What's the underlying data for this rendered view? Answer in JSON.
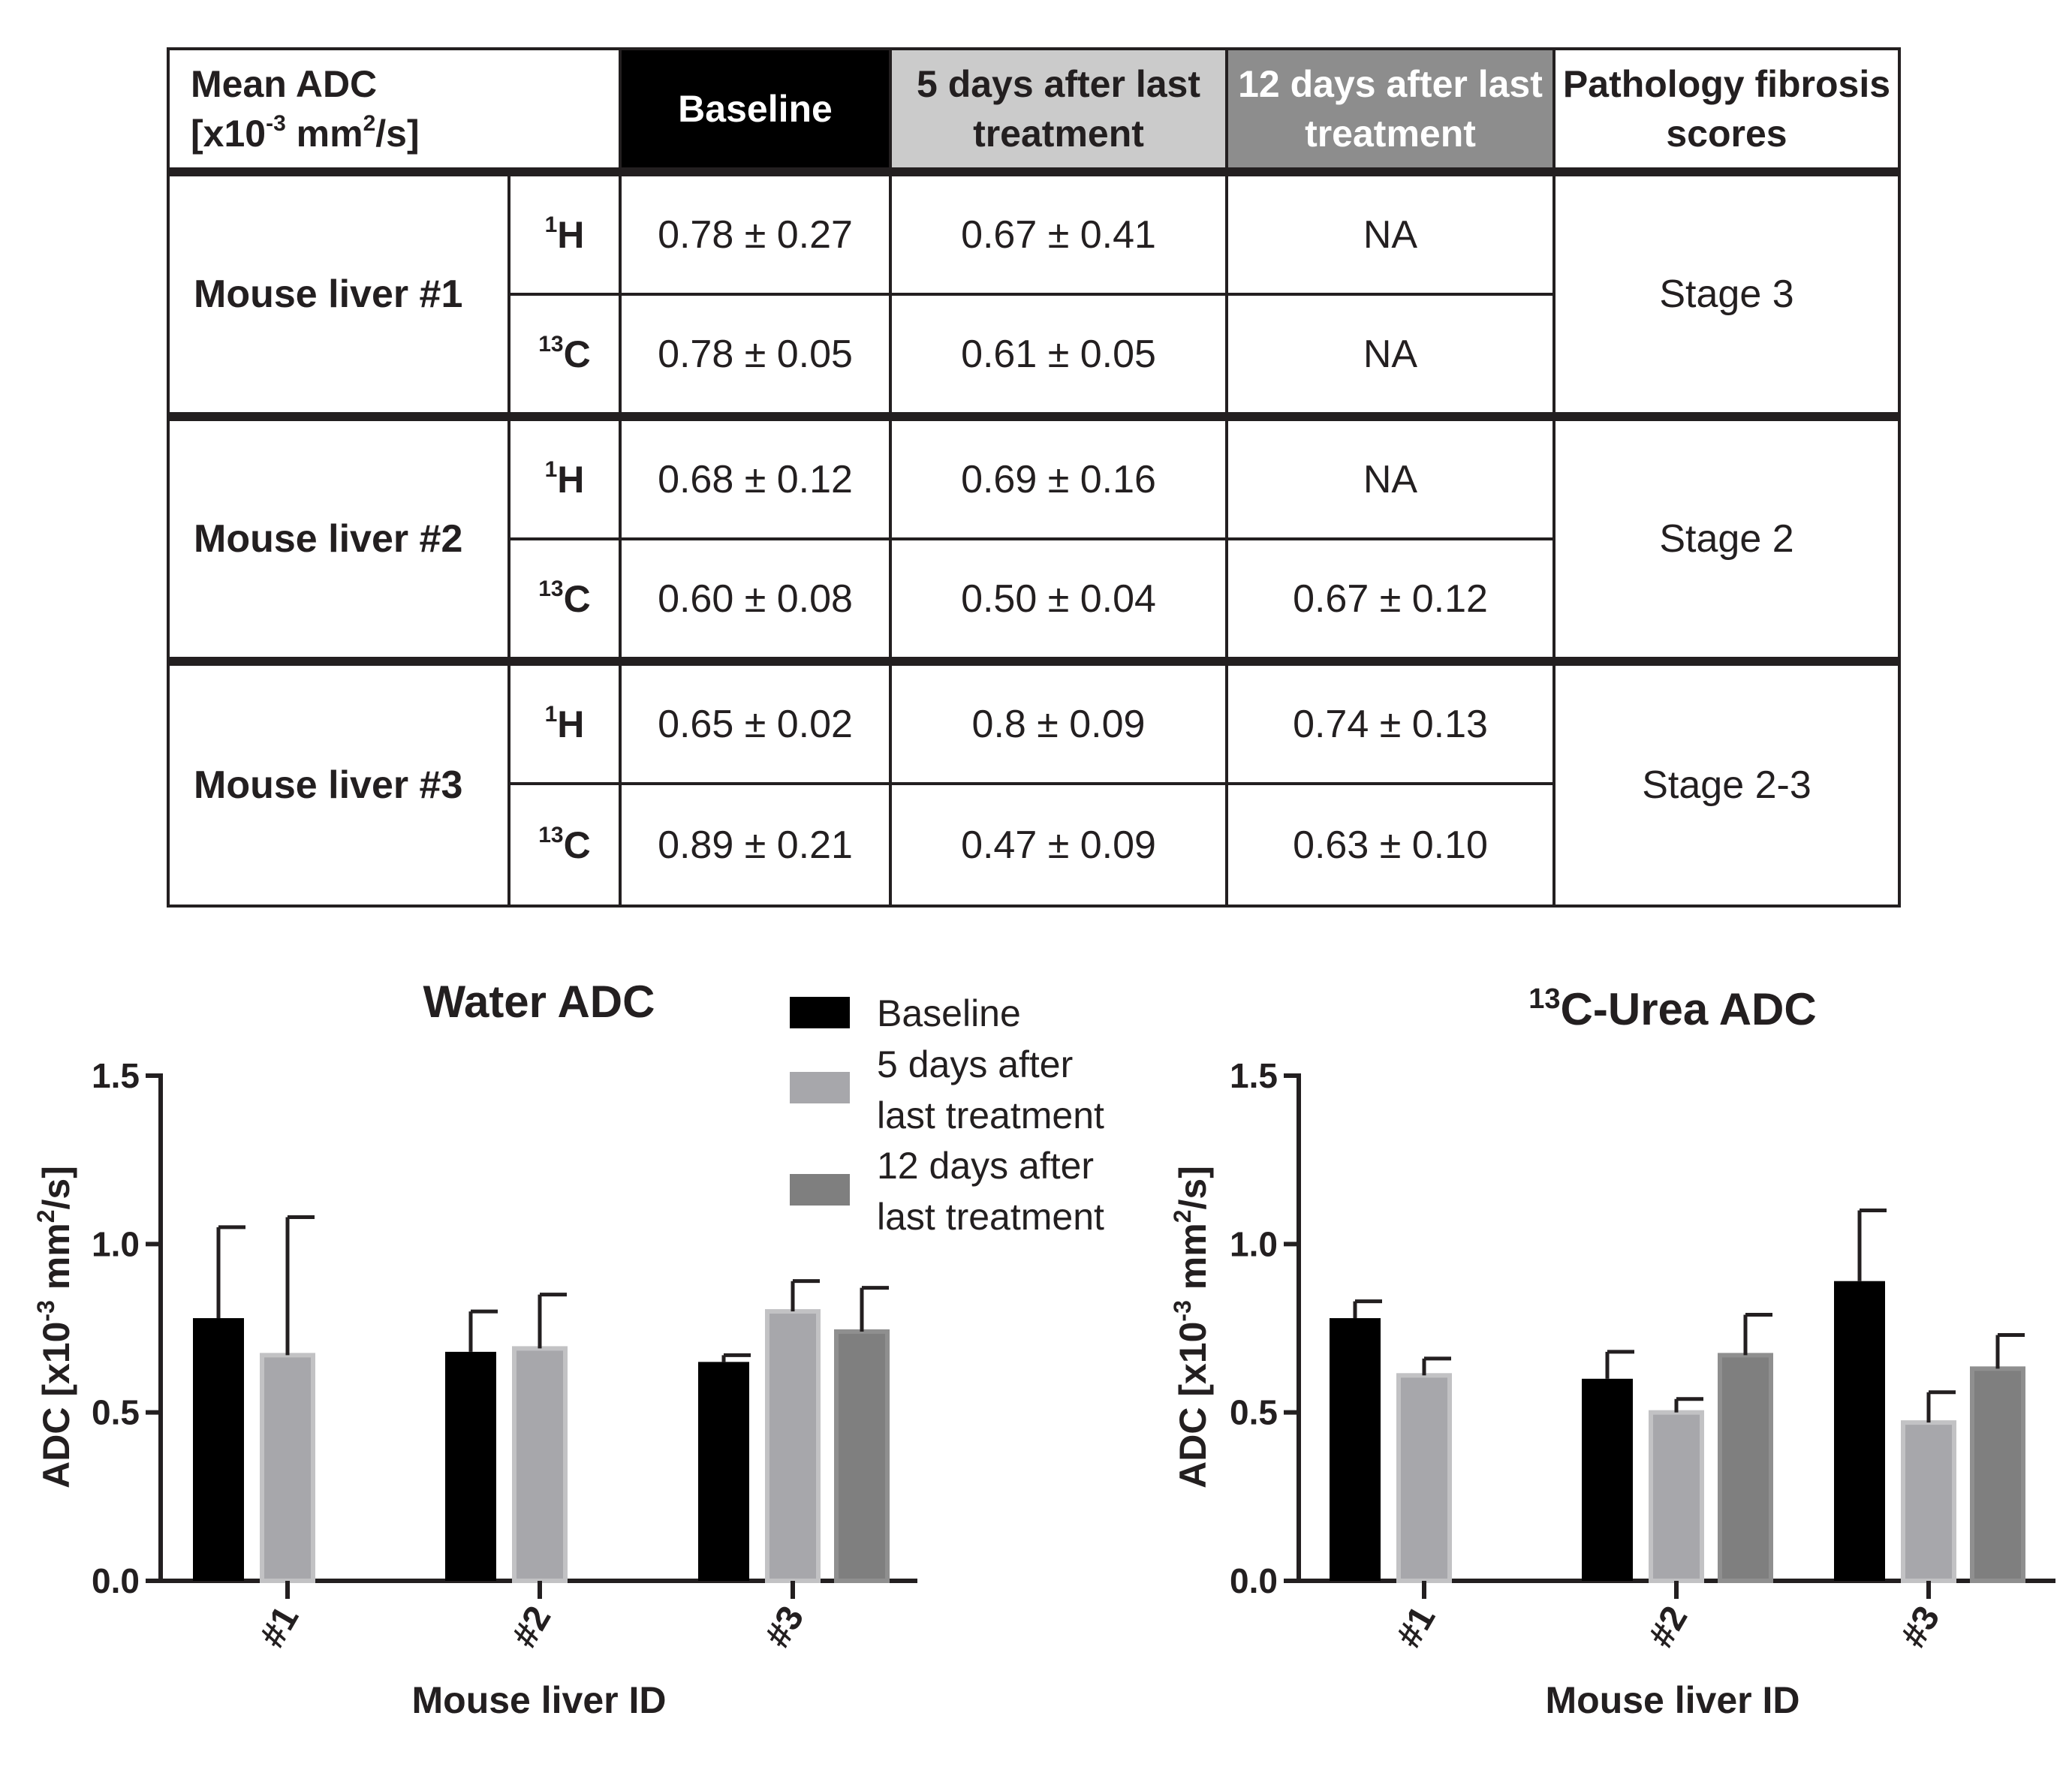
{
  "table": {
    "header": {
      "label_line1": "Mean ADC",
      "label_unit_prefix": "[x10",
      "label_unit_exp": "-3",
      "label_unit_mid": " mm",
      "label_unit_exp2": "2",
      "label_unit_suffix": "/s]",
      "baseline": "Baseline",
      "five_days": "5 days after last treatment",
      "twelve_days": "12 days after last treatment",
      "pathology": "Pathology fibrosis scores"
    },
    "nuclei": {
      "h_mass": "1",
      "h_symbol": "H",
      "c_mass": "13",
      "c_symbol": "C"
    },
    "rows": [
      {
        "mouse": "Mouse liver #1",
        "stage": "Stage 3",
        "h": {
          "baseline": "0.78 ± 0.27",
          "five": "0.67 ± 0.41",
          "twelve": "NA"
        },
        "c": {
          "baseline": "0.78 ± 0.05",
          "five": "0.61 ± 0.05",
          "twelve": "NA"
        }
      },
      {
        "mouse": "Mouse liver #2",
        "stage": "Stage 2",
        "h": {
          "baseline": "0.68 ± 0.12",
          "five": "0.69 ± 0.16",
          "twelve": "NA"
        },
        "c": {
          "baseline": "0.60 ± 0.08",
          "five": "0.50 ± 0.04",
          "twelve": "0.67 ± 0.12"
        }
      },
      {
        "mouse": "Mouse liver #3",
        "stage": "Stage 2-3",
        "h": {
          "baseline": "0.65 ± 0.02",
          "five": "0.8 ± 0.09",
          "twelve": "0.74 ± 0.13"
        },
        "c": {
          "baseline": "0.89 ± 0.21",
          "five": "0.47 ± 0.09",
          "twelve": "0.63 ± 0.10"
        }
      }
    ]
  },
  "legend": {
    "baseline": "Baseline",
    "five_line1": "5 days after",
    "five_line2": "last treatment",
    "twelve_line1": "12 days after",
    "twelve_line2": "last treatment"
  },
  "colors": {
    "baseline": "#000000",
    "five_days": "#a7a7ab",
    "twelve_days": "#7f7f7f",
    "axis": "#231f20"
  },
  "chart_data": [
    {
      "type": "bar",
      "title": "Water ADC",
      "xlabel": "Mouse liver ID",
      "ylabel_prefix": "ADC [x10",
      "ylabel_exp": "-3",
      "ylabel_mid": " mm",
      "ylabel_exp2": "2",
      "ylabel_suffix": "/s]",
      "ylim": [
        0,
        1.5
      ],
      "yticks": [
        "0.0",
        "0.5",
        "1.0",
        "1.5"
      ],
      "categories": [
        "#1",
        "#2",
        "#3"
      ],
      "series": [
        {
          "name": "Baseline",
          "values": [
            0.78,
            0.68,
            0.65
          ],
          "errors": [
            0.27,
            0.12,
            0.02
          ]
        },
        {
          "name": "5 days after last treatment",
          "values": [
            0.67,
            0.69,
            0.8
          ],
          "errors": [
            0.41,
            0.16,
            0.09
          ]
        },
        {
          "name": "12 days after last treatment",
          "values": [
            null,
            null,
            0.74
          ],
          "errors": [
            null,
            null,
            0.13
          ]
        }
      ]
    },
    {
      "type": "bar",
      "title_sup": "13",
      "title": "C-Urea ADC",
      "xlabel": "Mouse liver ID",
      "ylabel_prefix": "ADC [x10",
      "ylabel_exp": "-3",
      "ylabel_mid": " mm",
      "ylabel_exp2": "2",
      "ylabel_suffix": "/s]",
      "ylim": [
        0,
        1.5
      ],
      "yticks": [
        "0.0",
        "0.5",
        "1.0",
        "1.5"
      ],
      "categories": [
        "#1",
        "#2",
        "#3"
      ],
      "series": [
        {
          "name": "Baseline",
          "values": [
            0.78,
            0.6,
            0.89
          ],
          "errors": [
            0.05,
            0.08,
            0.21
          ]
        },
        {
          "name": "5 days after last treatment",
          "values": [
            0.61,
            0.5,
            0.47
          ],
          "errors": [
            0.05,
            0.04,
            0.09
          ]
        },
        {
          "name": "12 days after last treatment",
          "values": [
            null,
            0.67,
            0.63
          ],
          "errors": [
            null,
            0.12,
            0.1
          ]
        }
      ]
    }
  ]
}
